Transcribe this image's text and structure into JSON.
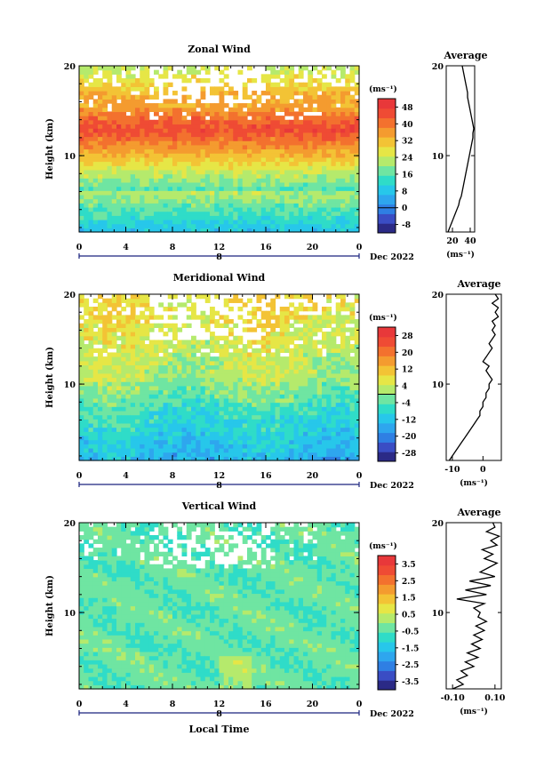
{
  "chart_data": [
    {
      "type": "heatmap",
      "title": "Zonal Wind",
      "ylabel": "Height (km)",
      "xlabel": "",
      "x_ticks": [
        "0",
        "4",
        "8",
        "12",
        "16",
        "20",
        "0"
      ],
      "date_day": "8",
      "date_label": "Dec 2022",
      "y_ticks": [
        "20",
        "10"
      ],
      "xlim": [
        0,
        24
      ],
      "ylim": [
        1.5,
        20
      ],
      "colorbar": {
        "unit": "(ms⁻¹)",
        "ticks": [
          "48",
          "40",
          "32",
          "24",
          "16",
          "8",
          "0",
          "-8"
        ],
        "range": [
          -12,
          52
        ],
        "colors": [
          "#2b2a86",
          "#3a4dc4",
          "#2f7fe3",
          "#2ea6ee",
          "#27c7ea",
          "#2fdcc8",
          "#6fe5a2",
          "#b5ea6c",
          "#e6e646",
          "#f3c335",
          "#f49b2f",
          "#f3712e",
          "#ef4b34",
          "#e8383a"
        ]
      },
      "average": {
        "title": "Average",
        "xlabel": "(ms⁻¹)",
        "x_ticks": [
          "20",
          "40"
        ],
        "xlim": [
          13,
          45
        ],
        "height": [
          1.5,
          2,
          2.5,
          3,
          3.5,
          4,
          4.5,
          5,
          5.5,
          6,
          6.5,
          7,
          7.5,
          8,
          8.5,
          9,
          9.5,
          10,
          10.5,
          11,
          11.5,
          12,
          12.5,
          13,
          13.5,
          14,
          14.5,
          15,
          15.5,
          16,
          16.5,
          17,
          17.5,
          18,
          18.5,
          19,
          19.5,
          20
        ],
        "values": [
          15,
          17,
          19,
          21,
          23,
          25,
          27,
          28,
          30,
          31,
          32,
          33,
          34,
          35,
          36,
          37,
          38,
          39,
          40,
          41,
          42,
          43,
          43,
          44,
          43,
          42,
          41,
          40,
          39,
          38,
          37,
          37,
          36,
          35,
          34,
          33,
          32,
          31
        ]
      }
    },
    {
      "type": "heatmap",
      "title": "Meridional Wind",
      "ylabel": "Height (km)",
      "xlabel": "",
      "x_ticks": [
        "0",
        "4",
        "8",
        "12",
        "16",
        "20",
        "0"
      ],
      "date_day": "8",
      "date_label": "Dec 2022",
      "y_ticks": [
        "20",
        "10"
      ],
      "xlim": [
        0,
        24
      ],
      "ylim": [
        1.5,
        20
      ],
      "colorbar": {
        "unit": "(ms⁻¹)",
        "ticks": [
          "28",
          "20",
          "12",
          "4",
          "-4",
          "-12",
          "-20",
          "-28"
        ],
        "range": [
          -32,
          32
        ],
        "colors": [
          "#2b2a86",
          "#3a4dc4",
          "#2f7fe3",
          "#2ea6ee",
          "#27c7ea",
          "#2fdcc8",
          "#6fe5a2",
          "#b5ea6c",
          "#e6e646",
          "#f3c335",
          "#f49b2f",
          "#f3712e",
          "#ef4b34",
          "#e8383a"
        ]
      },
      "average": {
        "title": "Average",
        "xlabel": "(ms⁻¹)",
        "x_ticks": [
          "-10",
          "0"
        ],
        "xlim": [
          -12,
          6
        ],
        "height": [
          1.5,
          2,
          2.5,
          3,
          3.5,
          4,
          4.5,
          5,
          5.5,
          6,
          6.5,
          7,
          7.5,
          8,
          8.5,
          9,
          9.5,
          10,
          10.5,
          11,
          11.5,
          12,
          12.5,
          13,
          13.5,
          14,
          14.5,
          15,
          15.5,
          16,
          16.5,
          17,
          17.5,
          18,
          18.5,
          19,
          19.5,
          20
        ],
        "values": [
          -11,
          -10,
          -9,
          -8,
          -7,
          -6,
          -5,
          -4,
          -3,
          -2,
          -1,
          -1,
          0,
          0,
          1,
          1,
          2,
          2,
          3,
          2,
          1,
          2,
          0,
          1,
          2,
          3,
          2,
          3,
          4,
          3,
          4,
          3,
          5,
          4,
          5,
          3,
          5,
          4
        ]
      }
    },
    {
      "type": "heatmap",
      "title": "Vertical Wind",
      "ylabel": "Height (km)",
      "xlabel": "Local Time",
      "x_ticks": [
        "0",
        "4",
        "8",
        "12",
        "16",
        "20",
        "0"
      ],
      "date_day": "8",
      "date_label": "Dec 2022",
      "y_ticks": [
        "20",
        "10"
      ],
      "xlim": [
        0,
        24
      ],
      "ylim": [
        1.5,
        20
      ],
      "colorbar": {
        "unit": "(ms⁻¹)",
        "ticks": [
          "3.5",
          "2.5",
          "1.5",
          "0.5",
          "-0.5",
          "-1.5",
          "-2.5",
          "-3.5"
        ],
        "range": [
          -4,
          4
        ],
        "colors": [
          "#2b2a86",
          "#3a4dc4",
          "#2f7fe3",
          "#2ea6ee",
          "#27c7ea",
          "#2fdcc8",
          "#6fe5a2",
          "#b5ea6c",
          "#e6e646",
          "#f3c335",
          "#f49b2f",
          "#f3712e",
          "#ef4b34",
          "#e8383a"
        ]
      },
      "average": {
        "title": "Average",
        "xlabel": "(ms⁻¹)",
        "x_ticks": [
          "-0.10",
          "0.10"
        ],
        "xlim": [
          -0.13,
          0.13
        ],
        "height": [
          1.5,
          2,
          2.5,
          3,
          3.5,
          4,
          4.5,
          5,
          5.5,
          6,
          6.5,
          7,
          7.5,
          8,
          8.5,
          9,
          9.5,
          10,
          10.5,
          11,
          11.5,
          12,
          12.5,
          13,
          13.5,
          14,
          14.5,
          15,
          15.5,
          16,
          16.5,
          17,
          17.5,
          18,
          18.5,
          19,
          19.5,
          20
        ],
        "values": [
          -0.1,
          -0.05,
          -0.08,
          -0.03,
          -0.06,
          0.0,
          -0.04,
          0.02,
          -0.03,
          0.03,
          -0.01,
          0.04,
          0.0,
          0.05,
          0.01,
          0.06,
          0.02,
          0.03,
          0.0,
          0.05,
          -0.08,
          0.06,
          -0.04,
          0.08,
          -0.02,
          0.1,
          0.03,
          0.07,
          0.11,
          0.05,
          0.09,
          0.04,
          0.11,
          0.08,
          0.12,
          0.06,
          0.1,
          0.09
        ]
      }
    }
  ]
}
